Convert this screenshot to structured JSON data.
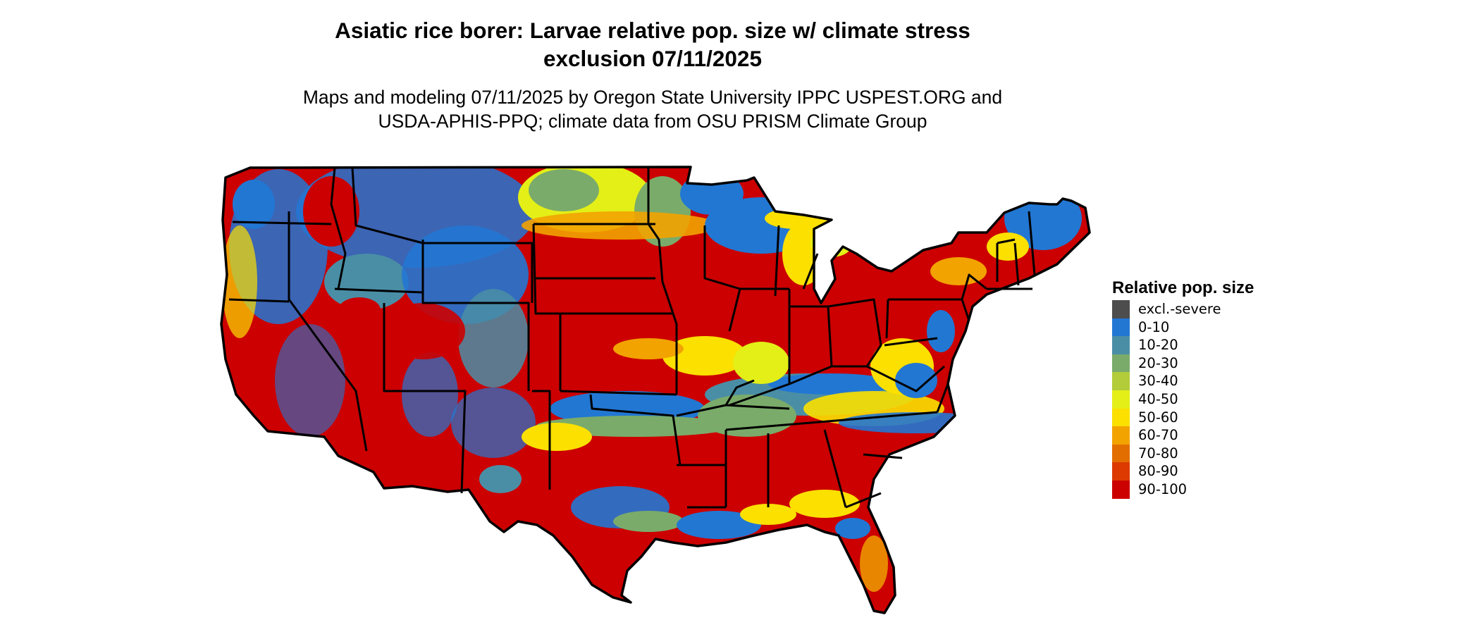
{
  "title": {
    "line1": "Asiatic rice borer: Larvae relative pop. size w/ climate stress",
    "line2": "exclusion 07/11/2025"
  },
  "subtitle": {
    "line1": "Maps and modeling 07/11/2025 by Oregon State University IPPC USPEST.ORG and",
    "line2": "USDA-APHIS-PPQ; climate data from OSU PRISM Climate Group"
  },
  "legend": {
    "title": "Relative pop. size",
    "items": [
      {
        "label": "excl.-severe",
        "color": "#4d4d4d"
      },
      {
        "label": "0-10",
        "color": "#2277d3"
      },
      {
        "label": "10-20",
        "color": "#4a8ea6"
      },
      {
        "label": "20-30",
        "color": "#7aab6a"
      },
      {
        "label": "30-40",
        "color": "#b2cc3a"
      },
      {
        "label": "40-50",
        "color": "#e3ef17"
      },
      {
        "label": "50-60",
        "color": "#fbe000"
      },
      {
        "label": "60-70",
        "color": "#f2a300"
      },
      {
        "label": "70-80",
        "color": "#e36e00"
      },
      {
        "label": "80-90",
        "color": "#dc3a00"
      },
      {
        "label": "90-100",
        "color": "#cc0000"
      }
    ]
  }
}
